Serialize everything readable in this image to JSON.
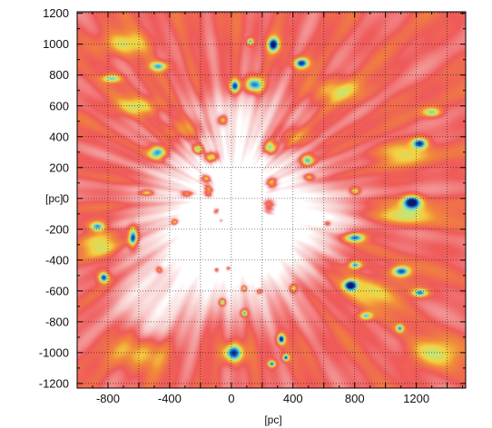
{
  "chart_data": {
    "type": "heatmap",
    "title": "",
    "xlabel": "[pc]",
    "ylabel": "[pc]",
    "xlim": [
      -1000,
      1520
    ],
    "ylim": [
      -1230,
      1210
    ],
    "x_ticks": [
      "-800",
      "-400",
      "0",
      "400",
      "800",
      "1200"
    ],
    "y_ticks": [
      "1200",
      "1000",
      "800",
      "600",
      "400",
      "200",
      "0",
      "-200",
      "-400",
      "-600",
      "-800",
      "-1000",
      "-1200"
    ],
    "grid": true,
    "colorscale": [
      "#ffffff",
      "#f7c6c6",
      "#ef5a5a",
      "#f08a3a",
      "#f5d040",
      "#bfe87a",
      "#58d0e0",
      "#1e64c8",
      "#0a1a6e"
    ],
    "background_color": "#ef5a5a",
    "clouds": [
      {
        "x": 145,
        "y": 740,
        "rx": 70,
        "ry": 60,
        "v": 1.0
      },
      {
        "x": 20,
        "y": 730,
        "rx": 40,
        "ry": 50,
        "v": 0.95
      },
      {
        "x": -60,
        "y": 510,
        "rx": 35,
        "ry": 40,
        "v": 0.9
      },
      {
        "x": 270,
        "y": 1000,
        "rx": 45,
        "ry": 55,
        "v": 0.95
      },
      {
        "x": 450,
        "y": 880,
        "rx": 60,
        "ry": 40,
        "v": 0.9
      },
      {
        "x": 120,
        "y": 1020,
        "rx": 25,
        "ry": 25,
        "v": 0.8
      },
      {
        "x": -470,
        "y": 860,
        "rx": 70,
        "ry": 35,
        "v": 0.7
      },
      {
        "x": -780,
        "y": 780,
        "rx": 70,
        "ry": 30,
        "v": 0.65
      },
      {
        "x": -480,
        "y": 300,
        "rx": 70,
        "ry": 50,
        "v": 0.95
      },
      {
        "x": -220,
        "y": 320,
        "rx": 40,
        "ry": 35,
        "v": 0.9
      },
      {
        "x": -130,
        "y": 270,
        "rx": 50,
        "ry": 40,
        "v": 1.0
      },
      {
        "x": -170,
        "y": 130,
        "rx": 40,
        "ry": 30,
        "v": 0.95
      },
      {
        "x": -150,
        "y": 50,
        "rx": 40,
        "ry": 60,
        "v": 1.0
      },
      {
        "x": -100,
        "y": -80,
        "rx": 30,
        "ry": 35,
        "v": 0.9
      },
      {
        "x": -290,
        "y": 30,
        "rx": 50,
        "ry": 25,
        "v": 0.8
      },
      {
        "x": -550,
        "y": 40,
        "rx": 50,
        "ry": 20,
        "v": 0.7
      },
      {
        "x": 250,
        "y": 330,
        "rx": 50,
        "ry": 50,
        "v": 0.95
      },
      {
        "x": 490,
        "y": 250,
        "rx": 50,
        "ry": 40,
        "v": 0.9
      },
      {
        "x": 260,
        "y": 100,
        "rx": 45,
        "ry": 45,
        "v": 0.95
      },
      {
        "x": 240,
        "y": -50,
        "rx": 55,
        "ry": 70,
        "v": 1.0
      },
      {
        "x": 1220,
        "y": 360,
        "rx": 60,
        "ry": 40,
        "v": 0.9
      },
      {
        "x": 1170,
        "y": -20,
        "rx": 70,
        "ry": 50,
        "v": 1.0
      },
      {
        "x": -870,
        "y": -180,
        "rx": 60,
        "ry": 35,
        "v": 0.8
      },
      {
        "x": -640,
        "y": -250,
        "rx": 35,
        "ry": 80,
        "v": 1.0
      },
      {
        "x": -830,
        "y": -510,
        "rx": 40,
        "ry": 40,
        "v": 1.0
      },
      {
        "x": -470,
        "y": -460,
        "rx": 25,
        "ry": 25,
        "v": 0.8
      },
      {
        "x": -370,
        "y": -150,
        "rx": 25,
        "ry": 25,
        "v": 0.85
      },
      {
        "x": -100,
        "y": -460,
        "rx": 20,
        "ry": 20,
        "v": 0.9
      },
      {
        "x": -20,
        "y": -450,
        "rx": 20,
        "ry": 20,
        "v": 0.9
      },
      {
        "x": 80,
        "y": -580,
        "rx": 20,
        "ry": 20,
        "v": 0.9
      },
      {
        "x": 180,
        "y": -600,
        "rx": 20,
        "ry": 20,
        "v": 0.85
      },
      {
        "x": -60,
        "y": -670,
        "rx": 25,
        "ry": 25,
        "v": 0.9
      },
      {
        "x": 80,
        "y": -740,
        "rx": 25,
        "ry": 25,
        "v": 0.9
      },
      {
        "x": -70,
        "y": -140,
        "rx": 20,
        "ry": 20,
        "v": 0.9
      },
      {
        "x": 10,
        "y": -1000,
        "rx": 75,
        "ry": 70,
        "v": 1.0
      },
      {
        "x": 320,
        "y": -910,
        "rx": 30,
        "ry": 40,
        "v": 1.0
      },
      {
        "x": 350,
        "y": -1030,
        "rx": 25,
        "ry": 25,
        "v": 0.9
      },
      {
        "x": 260,
        "y": -1070,
        "rx": 30,
        "ry": 25,
        "v": 0.85
      },
      {
        "x": 800,
        "y": -250,
        "rx": 80,
        "ry": 35,
        "v": 0.9
      },
      {
        "x": 800,
        "y": -430,
        "rx": 50,
        "ry": 30,
        "v": 0.85
      },
      {
        "x": 770,
        "y": -560,
        "rx": 50,
        "ry": 40,
        "v": 0.9
      },
      {
        "x": 1100,
        "y": -470,
        "rx": 70,
        "ry": 40,
        "v": 0.9
      },
      {
        "x": 1220,
        "y": -610,
        "rx": 60,
        "ry": 30,
        "v": 0.8
      },
      {
        "x": 870,
        "y": -760,
        "rx": 50,
        "ry": 30,
        "v": 0.75
      },
      {
        "x": 1090,
        "y": -840,
        "rx": 30,
        "ry": 30,
        "v": 0.7
      },
      {
        "x": 1300,
        "y": 560,
        "rx": 70,
        "ry": 35,
        "v": 0.65
      },
      {
        "x": 500,
        "y": 140,
        "rx": 40,
        "ry": 25,
        "v": 0.7
      },
      {
        "x": 400,
        "y": -580,
        "rx": 25,
        "ry": 30,
        "v": 0.75
      },
      {
        "x": 800,
        "y": 50,
        "rx": 35,
        "ry": 25,
        "v": 0.7
      },
      {
        "x": 620,
        "y": -160,
        "rx": 25,
        "ry": 20,
        "v": 0.65
      }
    ],
    "warm_bands": [
      {
        "x": -700,
        "y": 1000,
        "rx": 200,
        "ry": 90,
        "v": 0.45
      },
      {
        "x": -600,
        "y": 600,
        "rx": 180,
        "ry": 70,
        "v": 0.45
      },
      {
        "x": 700,
        "y": 700,
        "rx": 200,
        "ry": 90,
        "v": 0.42
      },
      {
        "x": 1100,
        "y": 300,
        "rx": 220,
        "ry": 80,
        "v": 0.42
      },
      {
        "x": 1150,
        "y": -100,
        "rx": 220,
        "ry": 80,
        "v": 0.45
      },
      {
        "x": -850,
        "y": -300,
        "rx": 160,
        "ry": 110,
        "v": 0.42
      },
      {
        "x": 900,
        "y": -600,
        "rx": 250,
        "ry": 120,
        "v": 0.4
      },
      {
        "x": 1300,
        "y": -1000,
        "rx": 200,
        "ry": 110,
        "v": 0.42
      },
      {
        "x": -600,
        "y": -1000,
        "rx": 220,
        "ry": 120,
        "v": 0.4
      },
      {
        "x": 400,
        "y": 400,
        "rx": 160,
        "ry": 90,
        "v": 0.38
      },
      {
        "x": -300,
        "y": 450,
        "rx": 160,
        "ry": 90,
        "v": 0.38
      }
    ],
    "cool_voids": [
      {
        "x": 20,
        "y": 50,
        "rx": 420,
        "ry": 380,
        "v": -0.45
      },
      {
        "x": -200,
        "y": -350,
        "rx": 350,
        "ry": 300,
        "v": -0.35
      },
      {
        "x": 200,
        "y": -350,
        "rx": 300,
        "ry": 320,
        "v": -0.3
      },
      {
        "x": 550,
        "y": -100,
        "rx": 220,
        "ry": 160,
        "v": -0.25
      },
      {
        "x": -500,
        "y": -700,
        "rx": 260,
        "ry": 200,
        "v": -0.22
      },
      {
        "x": 50,
        "y": 550,
        "rx": 220,
        "ry": 160,
        "v": -0.2
      }
    ]
  }
}
